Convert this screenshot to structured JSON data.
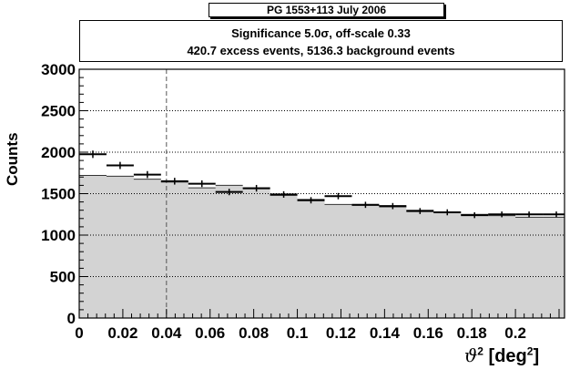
{
  "header": {
    "title": "PG 1553+113  July 2006"
  },
  "info": {
    "line1": "Significance 5.0σ,  off-scale 0.33",
    "line2": "420.7 excess events,  5136.3 background events"
  },
  "colors": {
    "background_fill": "#d3d3d3",
    "on_markers": "#000000",
    "cut_line": "#555555"
  },
  "chart_data": {
    "type": "bar",
    "xlabel": "ϑ² [deg²]",
    "xlabel_parts": {
      "symbol": "ϑ",
      "sup1": "2",
      "unit_pre": " [deg",
      "sup2": "2",
      "unit_post": "]"
    },
    "ylabel": "Counts",
    "xlim": [
      0,
      0.2225
    ],
    "ylim": [
      0,
      3000
    ],
    "bin_width": 0.0125,
    "x_ticks": [
      "0",
      "0.02",
      "0.04",
      "0.06",
      "0.08",
      "0.1",
      "0.12",
      "0.14",
      "0.16",
      "0.18",
      "0.2"
    ],
    "x_tick_values": [
      0,
      0.02,
      0.04,
      0.06,
      0.08,
      0.1,
      0.12,
      0.14,
      0.16,
      0.18,
      0.2
    ],
    "y_ticks": [
      "0",
      "500",
      "1000",
      "1500",
      "2000",
      "2500",
      "3000"
    ],
    "y_tick_values": [
      0,
      500,
      1000,
      1500,
      2000,
      2500,
      3000
    ],
    "grid_y": true,
    "cut_x": 0.04,
    "series": [
      {
        "kind": "background-histogram",
        "bin_centers": [
          0.00625,
          0.01875,
          0.03125,
          0.04375,
          0.05625,
          0.06875,
          0.08125,
          0.09375,
          0.10625,
          0.11875,
          0.13125,
          0.14375,
          0.15625,
          0.16875,
          0.18125,
          0.19375,
          0.20625,
          0.21875
        ],
        "values": [
          1720,
          1710,
          1675,
          1640,
          1570,
          1600,
          1570,
          1480,
          1430,
          1370,
          1360,
          1340,
          1300,
          1275,
          1250,
          1235,
          1215,
          1215
        ]
      },
      {
        "kind": "on-points",
        "bin_centers": [
          0.00625,
          0.01875,
          0.03125,
          0.04375,
          0.05625,
          0.06875,
          0.08125,
          0.09375,
          0.10625,
          0.11875,
          0.13125,
          0.14375,
          0.15625,
          0.16875,
          0.18125,
          0.19375,
          0.20625,
          0.21875
        ],
        "values": [
          1975,
          1840,
          1730,
          1650,
          1620,
          1520,
          1565,
          1490,
          1420,
          1470,
          1365,
          1350,
          1290,
          1275,
          1240,
          1250,
          1250,
          1250
        ],
        "errors": [
          45,
          43,
          42,
          41,
          40,
          39,
          40,
          39,
          38,
          38,
          37,
          37,
          36,
          36,
          35,
          35,
          35,
          35
        ]
      }
    ]
  }
}
